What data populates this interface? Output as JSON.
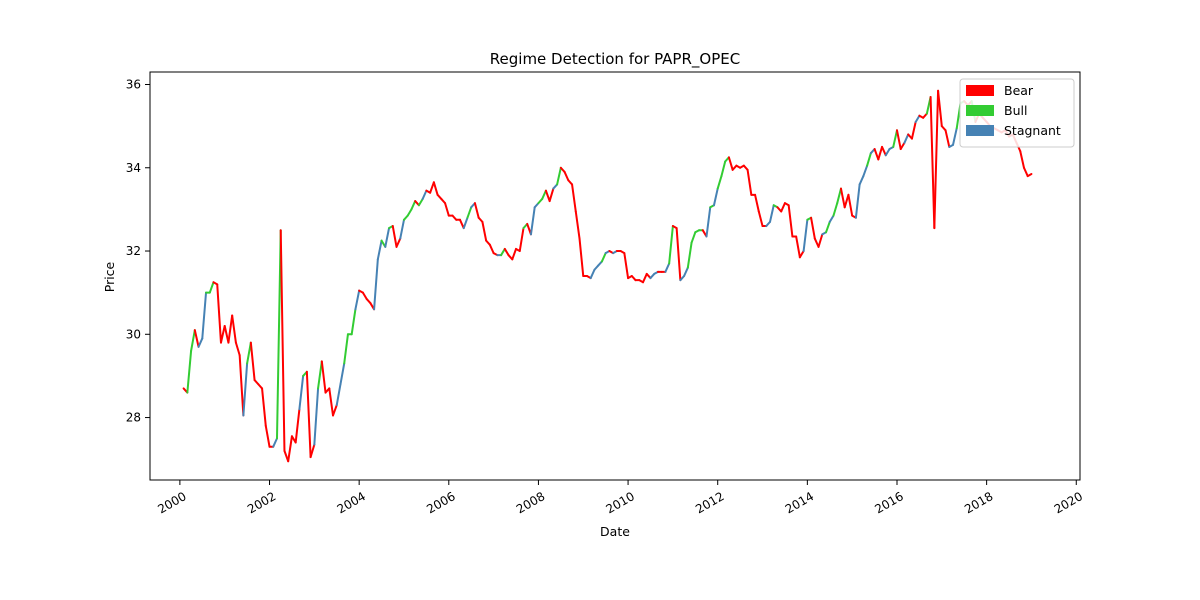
{
  "chart_data": {
    "type": "line",
    "title": "Regime Detection for PAPR_OPEC",
    "xlabel": "Date",
    "ylabel": "Price",
    "xlim": [
      "1999-05-01",
      "2020-02-01"
    ],
    "ylim": [
      26.5,
      36.3
    ],
    "x_ticks": [
      "2000",
      "2002",
      "2004",
      "2006",
      "2008",
      "2010",
      "2012",
      "2014",
      "2016",
      "2018",
      "2020"
    ],
    "y_ticks": [
      28,
      30,
      32,
      34,
      36
    ],
    "grid": false,
    "legend_position": "top-right",
    "legend": [
      {
        "name": "Bear",
        "color": "#ff0000"
      },
      {
        "name": "Bull",
        "color": "#33cc33"
      },
      {
        "name": "Stagnant",
        "color": "#4682b4"
      }
    ],
    "colors": {
      "Bear": "#ff0000",
      "Bull": "#33cc33",
      "Stagnant": "#4682b4"
    },
    "points": [
      [
        "2000-02",
        28.7,
        "Bear"
      ],
      [
        "2000-03",
        28.6,
        "Bear"
      ],
      [
        "2000-04",
        29.6,
        "Bull"
      ],
      [
        "2000-05",
        30.1,
        "Bull"
      ],
      [
        "2000-06",
        29.7,
        "Bear"
      ],
      [
        "2000-07",
        29.9,
        "Stagnant"
      ],
      [
        "2000-08",
        31.0,
        "Stagnant"
      ],
      [
        "2000-09",
        31.0,
        "Bull"
      ],
      [
        "2000-10",
        31.25,
        "Bull"
      ],
      [
        "2000-11",
        31.2,
        "Bear"
      ],
      [
        "2000-12",
        29.8,
        "Bear"
      ],
      [
        "2001-01",
        30.2,
        "Bear"
      ],
      [
        "2001-02",
        29.8,
        "Bear"
      ],
      [
        "2001-03",
        30.45,
        "Bear"
      ],
      [
        "2001-04",
        29.8,
        "Bear"
      ],
      [
        "2001-05",
        29.5,
        "Bear"
      ],
      [
        "2001-06",
        28.05,
        "Bear"
      ],
      [
        "2001-07",
        29.3,
        "Stagnant"
      ],
      [
        "2001-08",
        29.8,
        "Bull"
      ],
      [
        "2001-09",
        28.9,
        "Bear"
      ],
      [
        "2001-10",
        28.8,
        "Bear"
      ],
      [
        "2001-11",
        28.7,
        "Bear"
      ],
      [
        "2001-12",
        27.8,
        "Bear"
      ],
      [
        "2002-01",
        27.3,
        "Bear"
      ],
      [
        "2002-02",
        27.3,
        "Bear"
      ],
      [
        "2002-03",
        27.5,
        "Stagnant"
      ],
      [
        "2002-04",
        32.5,
        "Bull"
      ],
      [
        "2002-05",
        27.2,
        "Bear"
      ],
      [
        "2002-06",
        26.95,
        "Bear"
      ],
      [
        "2002-07",
        27.55,
        "Bear"
      ],
      [
        "2002-08",
        27.4,
        "Bear"
      ],
      [
        "2002-09",
        28.2,
        "Bear"
      ],
      [
        "2002-10",
        29.0,
        "Stagnant"
      ],
      [
        "2002-11",
        29.1,
        "Bull"
      ],
      [
        "2002-12",
        27.05,
        "Bear"
      ],
      [
        "2003-01",
        27.35,
        "Bear"
      ],
      [
        "2003-02",
        28.7,
        "Stagnant"
      ],
      [
        "2003-03",
        29.35,
        "Bull"
      ],
      [
        "2003-04",
        28.6,
        "Bear"
      ],
      [
        "2003-05",
        28.7,
        "Bear"
      ],
      [
        "2003-06",
        28.05,
        "Bear"
      ],
      [
        "2003-07",
        28.3,
        "Bear"
      ],
      [
        "2003-08",
        28.8,
        "Stagnant"
      ],
      [
        "2003-09",
        29.3,
        "Stagnant"
      ],
      [
        "2003-10",
        30.0,
        "Bull"
      ],
      [
        "2003-11",
        30.0,
        "Bull"
      ],
      [
        "2003-12",
        30.6,
        "Bull"
      ],
      [
        "2004-01",
        31.05,
        "Stagnant"
      ],
      [
        "2004-02",
        31.0,
        "Bear"
      ],
      [
        "2004-03",
        30.85,
        "Bear"
      ],
      [
        "2004-04",
        30.75,
        "Bear"
      ],
      [
        "2004-05",
        30.6,
        "Bear"
      ],
      [
        "2004-06",
        31.8,
        "Stagnant"
      ],
      [
        "2004-07",
        32.25,
        "Stagnant"
      ],
      [
        "2004-08",
        32.1,
        "Bull"
      ],
      [
        "2004-09",
        32.55,
        "Stagnant"
      ],
      [
        "2004-10",
        32.6,
        "Bull"
      ],
      [
        "2004-11",
        32.1,
        "Bear"
      ],
      [
        "2004-12",
        32.3,
        "Bear"
      ],
      [
        "2005-01",
        32.75,
        "Stagnant"
      ],
      [
        "2005-02",
        32.85,
        "Bull"
      ],
      [
        "2005-03",
        33.0,
        "Bull"
      ],
      [
        "2005-04",
        33.2,
        "Bull"
      ],
      [
        "2005-05",
        33.1,
        "Bear"
      ],
      [
        "2005-06",
        33.25,
        "Bull"
      ],
      [
        "2005-07",
        33.45,
        "Stagnant"
      ],
      [
        "2005-08",
        33.4,
        "Bear"
      ],
      [
        "2005-09",
        33.65,
        "Bear"
      ],
      [
        "2005-10",
        33.35,
        "Bear"
      ],
      [
        "2005-11",
        33.25,
        "Bear"
      ],
      [
        "2005-12",
        33.15,
        "Bear"
      ],
      [
        "2006-01",
        32.85,
        "Bear"
      ],
      [
        "2006-02",
        32.85,
        "Bear"
      ],
      [
        "2006-03",
        32.75,
        "Bear"
      ],
      [
        "2006-04",
        32.75,
        "Bear"
      ],
      [
        "2006-05",
        32.55,
        "Bear"
      ],
      [
        "2006-06",
        32.8,
        "Stagnant"
      ],
      [
        "2006-07",
        33.05,
        "Bull"
      ],
      [
        "2006-08",
        33.15,
        "Stagnant"
      ],
      [
        "2006-09",
        32.8,
        "Bear"
      ],
      [
        "2006-10",
        32.7,
        "Bear"
      ],
      [
        "2006-11",
        32.25,
        "Bear"
      ],
      [
        "2006-12",
        32.15,
        "Bear"
      ],
      [
        "2007-01",
        31.95,
        "Bear"
      ],
      [
        "2007-02",
        31.9,
        "Bear"
      ],
      [
        "2007-03",
        31.9,
        "Stagnant"
      ],
      [
        "2007-04",
        32.05,
        "Bull"
      ],
      [
        "2007-05",
        31.9,
        "Bear"
      ],
      [
        "2007-06",
        31.8,
        "Bear"
      ],
      [
        "2007-07",
        32.05,
        "Bear"
      ],
      [
        "2007-08",
        32.0,
        "Bear"
      ],
      [
        "2007-09",
        32.55,
        "Bear"
      ],
      [
        "2007-10",
        32.65,
        "Bull"
      ],
      [
        "2007-11",
        32.4,
        "Bear"
      ],
      [
        "2007-12",
        33.05,
        "Stagnant"
      ],
      [
        "2008-01",
        33.15,
        "Stagnant"
      ],
      [
        "2008-02",
        33.25,
        "Bull"
      ],
      [
        "2008-03",
        33.45,
        "Bull"
      ],
      [
        "2008-04",
        33.2,
        "Bear"
      ],
      [
        "2008-05",
        33.5,
        "Bear"
      ],
      [
        "2008-06",
        33.6,
        "Stagnant"
      ],
      [
        "2008-07",
        34.0,
        "Bull"
      ],
      [
        "2008-08",
        33.9,
        "Bear"
      ],
      [
        "2008-09",
        33.7,
        "Bear"
      ],
      [
        "2008-10",
        33.6,
        "Bear"
      ],
      [
        "2008-11",
        32.95,
        "Bear"
      ],
      [
        "2008-12",
        32.3,
        "Bear"
      ],
      [
        "2009-01",
        31.4,
        "Bear"
      ],
      [
        "2009-02",
        31.4,
        "Bear"
      ],
      [
        "2009-03",
        31.35,
        "Bear"
      ],
      [
        "2009-04",
        31.55,
        "Stagnant"
      ],
      [
        "2009-05",
        31.65,
        "Stagnant"
      ],
      [
        "2009-06",
        31.75,
        "Stagnant"
      ],
      [
        "2009-07",
        31.95,
        "Bull"
      ],
      [
        "2009-08",
        32.0,
        "Stagnant"
      ],
      [
        "2009-09",
        31.95,
        "Bear"
      ],
      [
        "2009-10",
        32.0,
        "Stagnant"
      ],
      [
        "2009-11",
        32.0,
        "Bear"
      ],
      [
        "2009-12",
        31.95,
        "Bear"
      ],
      [
        "2010-01",
        31.35,
        "Bear"
      ],
      [
        "2010-02",
        31.4,
        "Bear"
      ],
      [
        "2010-03",
        31.3,
        "Bear"
      ],
      [
        "2010-04",
        31.3,
        "Bear"
      ],
      [
        "2010-05",
        31.25,
        "Bear"
      ],
      [
        "2010-06",
        31.45,
        "Bear"
      ],
      [
        "2010-07",
        31.35,
        "Bear"
      ],
      [
        "2010-08",
        31.45,
        "Stagnant"
      ],
      [
        "2010-09",
        31.5,
        "Stagnant"
      ],
      [
        "2010-10",
        31.5,
        "Bear"
      ],
      [
        "2010-11",
        31.5,
        "Bear"
      ],
      [
        "2010-12",
        31.7,
        "Stagnant"
      ],
      [
        "2011-01",
        32.6,
        "Bull"
      ],
      [
        "2011-02",
        32.55,
        "Bear"
      ],
      [
        "2011-03",
        31.3,
        "Bear"
      ],
      [
        "2011-04",
        31.4,
        "Stagnant"
      ],
      [
        "2011-05",
        31.6,
        "Stagnant"
      ],
      [
        "2011-06",
        32.2,
        "Bull"
      ],
      [
        "2011-07",
        32.45,
        "Bull"
      ],
      [
        "2011-08",
        32.5,
        "Bull"
      ],
      [
        "2011-09",
        32.5,
        "Bull"
      ],
      [
        "2011-10",
        32.35,
        "Bear"
      ],
      [
        "2011-11",
        33.05,
        "Stagnant"
      ],
      [
        "2011-12",
        33.1,
        "Bull"
      ],
      [
        "2012-01",
        33.5,
        "Stagnant"
      ],
      [
        "2012-02",
        33.8,
        "Bull"
      ],
      [
        "2012-03",
        34.15,
        "Bull"
      ],
      [
        "2012-04",
        34.25,
        "Bull"
      ],
      [
        "2012-05",
        33.95,
        "Bear"
      ],
      [
        "2012-06",
        34.05,
        "Bear"
      ],
      [
        "2012-07",
        34.0,
        "Bear"
      ],
      [
        "2012-08",
        34.05,
        "Bear"
      ],
      [
        "2012-09",
        33.95,
        "Bear"
      ],
      [
        "2012-10",
        33.35,
        "Bear"
      ],
      [
        "2012-11",
        33.35,
        "Bear"
      ],
      [
        "2012-12",
        32.95,
        "Bear"
      ],
      [
        "2013-01",
        32.6,
        "Bear"
      ],
      [
        "2013-02",
        32.6,
        "Bear"
      ],
      [
        "2013-03",
        32.7,
        "Stagnant"
      ],
      [
        "2013-04",
        33.1,
        "Stagnant"
      ],
      [
        "2013-05",
        33.05,
        "Bull"
      ],
      [
        "2013-06",
        32.95,
        "Bear"
      ],
      [
        "2013-07",
        33.15,
        "Bear"
      ],
      [
        "2013-08",
        33.1,
        "Bear"
      ],
      [
        "2013-09",
        32.35,
        "Bear"
      ],
      [
        "2013-10",
        32.35,
        "Bear"
      ],
      [
        "2013-11",
        31.85,
        "Bear"
      ],
      [
        "2013-12",
        32.0,
        "Bear"
      ],
      [
        "2014-01",
        32.75,
        "Stagnant"
      ],
      [
        "2014-02",
        32.8,
        "Bull"
      ],
      [
        "2014-03",
        32.3,
        "Bear"
      ],
      [
        "2014-04",
        32.1,
        "Bear"
      ],
      [
        "2014-05",
        32.4,
        "Bear"
      ],
      [
        "2014-06",
        32.45,
        "Stagnant"
      ],
      [
        "2014-07",
        32.7,
        "Bull"
      ],
      [
        "2014-08",
        32.85,
        "Stagnant"
      ],
      [
        "2014-09",
        33.15,
        "Bull"
      ],
      [
        "2014-10",
        33.5,
        "Bull"
      ],
      [
        "2014-11",
        33.05,
        "Bear"
      ],
      [
        "2014-12",
        33.35,
        "Bear"
      ],
      [
        "2015-01",
        32.85,
        "Bear"
      ],
      [
        "2015-02",
        32.8,
        "Bear"
      ],
      [
        "2015-03",
        33.6,
        "Stagnant"
      ],
      [
        "2015-04",
        33.8,
        "Stagnant"
      ],
      [
        "2015-05",
        34.05,
        "Stagnant"
      ],
      [
        "2015-06",
        34.35,
        "Bull"
      ],
      [
        "2015-07",
        34.45,
        "Stagnant"
      ],
      [
        "2015-08",
        34.2,
        "Bear"
      ],
      [
        "2015-09",
        34.5,
        "Bear"
      ],
      [
        "2015-10",
        34.3,
        "Bear"
      ],
      [
        "2015-11",
        34.45,
        "Stagnant"
      ],
      [
        "2015-12",
        34.5,
        "Stagnant"
      ],
      [
        "2016-01",
        34.9,
        "Bull"
      ],
      [
        "2016-02",
        34.45,
        "Bear"
      ],
      [
        "2016-03",
        34.6,
        "Bear"
      ],
      [
        "2016-04",
        34.8,
        "Stagnant"
      ],
      [
        "2016-05",
        34.7,
        "Bear"
      ],
      [
        "2016-06",
        35.1,
        "Bear"
      ],
      [
        "2016-07",
        35.25,
        "Stagnant"
      ],
      [
        "2016-08",
        35.2,
        "Bear"
      ],
      [
        "2016-09",
        35.3,
        "Bear"
      ],
      [
        "2016-10",
        35.7,
        "Bull"
      ],
      [
        "2016-11",
        32.55,
        "Bear"
      ],
      [
        "2016-12",
        35.85,
        "Bear"
      ],
      [
        "2017-01",
        35.0,
        "Bear"
      ],
      [
        "2017-02",
        34.9,
        "Bear"
      ],
      [
        "2017-03",
        34.5,
        "Bear"
      ],
      [
        "2017-04",
        34.55,
        "Stagnant"
      ],
      [
        "2017-05",
        34.95,
        "Stagnant"
      ],
      [
        "2017-06",
        35.55,
        "Bull"
      ],
      [
        "2017-07",
        35.6,
        "Bull"
      ],
      [
        "2017-08",
        35.5,
        "Bear"
      ],
      [
        "2017-09",
        35.6,
        "Bear"
      ],
      [
        "2017-10",
        35.1,
        "Bull"
      ],
      [
        "2017-11",
        35.3,
        "Bear"
      ],
      [
        "2017-12",
        35.2,
        "Bear"
      ],
      [
        "2018-01",
        35.1,
        "Bear"
      ],
      [
        "2018-02",
        35.0,
        "Bear"
      ],
      [
        "2018-03",
        34.95,
        "Bear"
      ],
      [
        "2018-04",
        34.9,
        "Bear"
      ],
      [
        "2018-05",
        34.85,
        "Bear"
      ],
      [
        "2018-06",
        34.9,
        "Bear"
      ],
      [
        "2018-07",
        34.75,
        "Bear"
      ],
      [
        "2018-08",
        34.8,
        "Bear"
      ],
      [
        "2018-09",
        34.6,
        "Bear"
      ],
      [
        "2018-10",
        34.4,
        "Bear"
      ],
      [
        "2018-11",
        34.0,
        "Bear"
      ],
      [
        "2018-12",
        33.8,
        "Bear"
      ],
      [
        "2019-01",
        33.85,
        "Bear"
      ]
    ]
  }
}
